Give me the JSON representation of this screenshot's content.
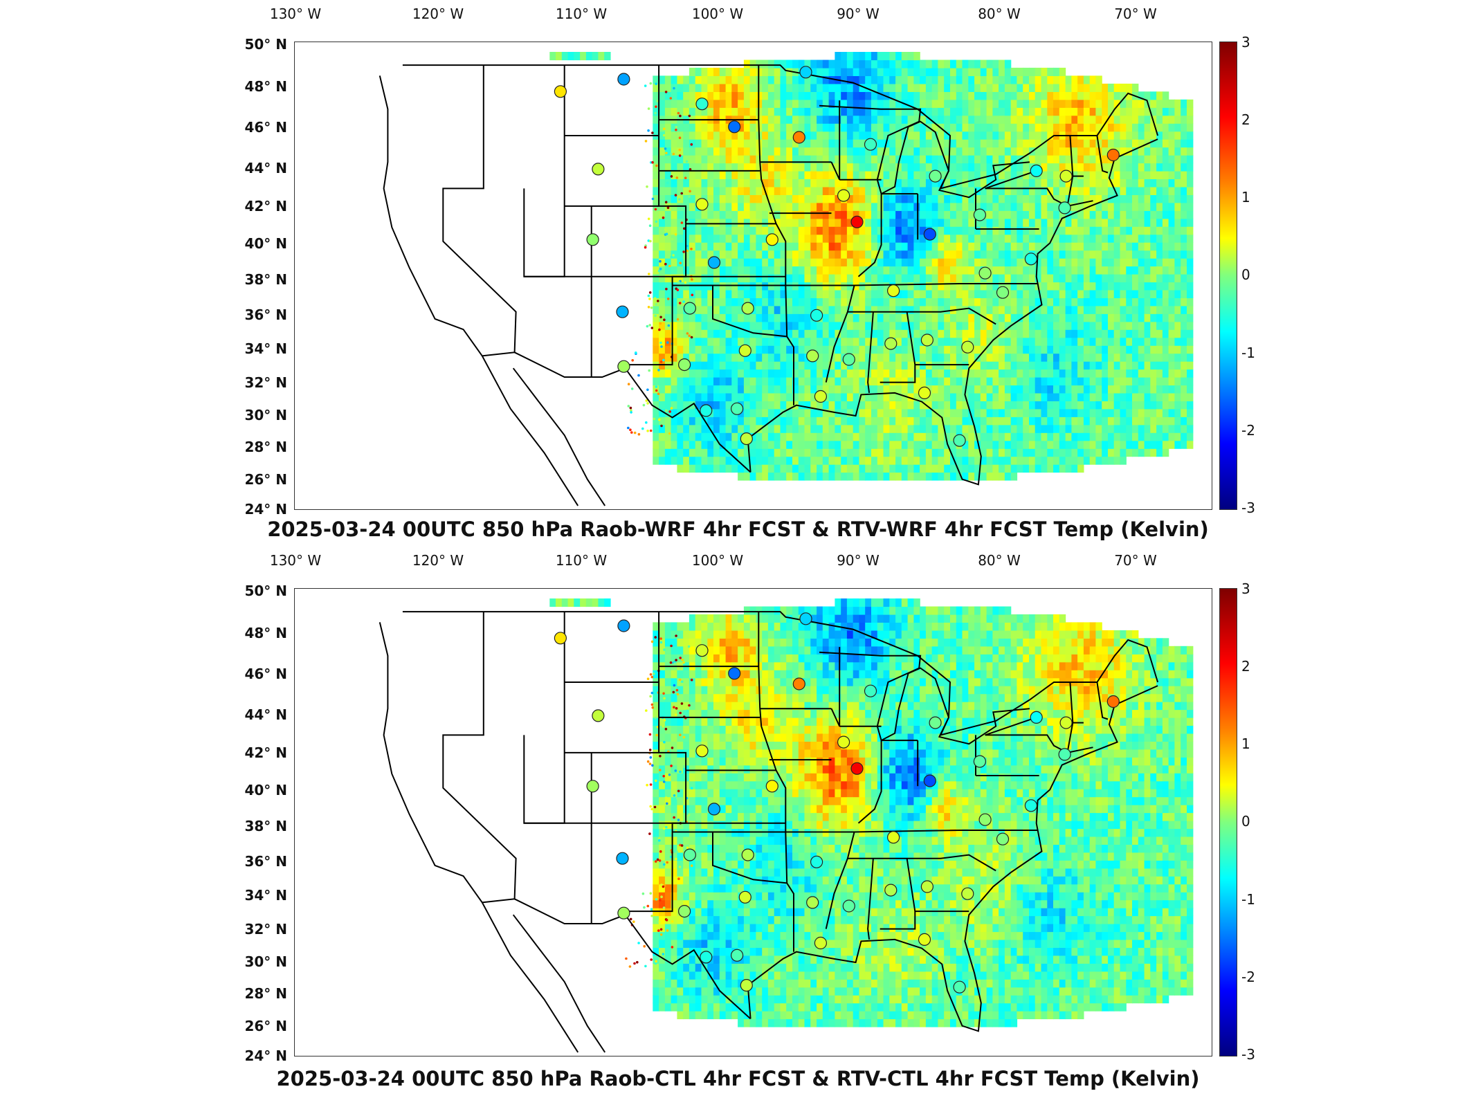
{
  "panels": [
    {
      "id": "top",
      "title": "2025-03-24 00UTC 850 hPa Raob-WRF 4hr FCST & RTV-WRF 4hr FCST Temp (Kelvin)",
      "lon_labels": [
        "130° W",
        "120° W",
        "110° W",
        "100° W",
        "90° W",
        "80° W",
        "70° W"
      ],
      "lat_labels": [
        "50° N",
        "48° N",
        "46° N",
        "44° N",
        "42° N",
        "40° N",
        "38° N",
        "36° N",
        "34° N",
        "32° N",
        "30° N",
        "28° N",
        "26° N",
        "24° N"
      ],
      "colorbar_ticks": [
        "3",
        "2",
        "1",
        "0",
        "-1",
        "-2",
        "-3"
      ],
      "stations": [
        {
          "lon": -111.3,
          "lat": 47.5,
          "value": 0.9
        },
        {
          "lon": -106.6,
          "lat": 48.2,
          "value": -1.3
        },
        {
          "lon": -100.8,
          "lat": 46.8,
          "value": -0.5
        },
        {
          "lon": -98.4,
          "lat": 45.5,
          "value": -1.6
        },
        {
          "lon": -93.6,
          "lat": 44.9,
          "value": 1.5
        },
        {
          "lon": -93.1,
          "lat": 48.6,
          "value": -1.0
        },
        {
          "lon": -108.5,
          "lat": 43.1,
          "value": 0.4
        },
        {
          "lon": -108.9,
          "lat": 39.1,
          "value": 0.1
        },
        {
          "lon": -106.7,
          "lat": 35.0,
          "value": -1.2
        },
        {
          "lon": -106.6,
          "lat": 31.9,
          "value": 0.2
        },
        {
          "lon": -100.8,
          "lat": 41.1,
          "value": 0.6
        },
        {
          "lon": -99.9,
          "lat": 37.8,
          "value": -1.2
        },
        {
          "lon": -95.6,
          "lat": 39.1,
          "value": 0.8
        },
        {
          "lon": -89.3,
          "lat": 40.1,
          "value": 2.3
        },
        {
          "lon": -90.3,
          "lat": 41.6,
          "value": 0.6
        },
        {
          "lon": -101.7,
          "lat": 35.2,
          "value": -0.2
        },
        {
          "lon": -97.4,
          "lat": 35.2,
          "value": 0.3
        },
        {
          "lon": -92.3,
          "lat": 34.8,
          "value": -0.6
        },
        {
          "lon": -86.6,
          "lat": 36.2,
          "value": 0.6
        },
        {
          "lon": -83.9,
          "lat": 39.4,
          "value": -1.8
        },
        {
          "lon": -80.2,
          "lat": 40.5,
          "value": -0.2
        },
        {
          "lon": -79.8,
          "lat": 37.2,
          "value": 0.1
        },
        {
          "lon": -78.5,
          "lat": 36.1,
          "value": 0.0
        },
        {
          "lon": -76.4,
          "lat": 38.0,
          "value": -0.6
        },
        {
          "lon": -73.9,
          "lat": 40.9,
          "value": -0.3
        },
        {
          "lon": -73.8,
          "lat": 42.7,
          "value": 0.5
        },
        {
          "lon": -76.0,
          "lat": 43.0,
          "value": -0.7
        },
        {
          "lon": -70.3,
          "lat": 43.9,
          "value": 1.6
        },
        {
          "lon": -83.5,
          "lat": 42.7,
          "value": -0.1
        },
        {
          "lon": -88.3,
          "lat": 44.5,
          "value": -0.4
        },
        {
          "lon": -81.1,
          "lat": 33.0,
          "value": 0.4
        },
        {
          "lon": -84.1,
          "lat": 33.4,
          "value": 0.4
        },
        {
          "lon": -86.8,
          "lat": 33.2,
          "value": 0.3
        },
        {
          "lon": -89.9,
          "lat": 32.3,
          "value": -0.2
        },
        {
          "lon": -92.6,
          "lat": 32.5,
          "value": 0.3
        },
        {
          "lon": -97.6,
          "lat": 32.8,
          "value": 0.5
        },
        {
          "lon": -102.1,
          "lat": 32.0,
          "value": 0.1
        },
        {
          "lon": -98.2,
          "lat": 29.5,
          "value": -0.3
        },
        {
          "lon": -100.5,
          "lat": 29.4,
          "value": -0.6
        },
        {
          "lon": -92.0,
          "lat": 30.2,
          "value": 0.5
        },
        {
          "lon": -84.3,
          "lat": 30.4,
          "value": 0.6
        },
        {
          "lon": -81.7,
          "lat": 27.7,
          "value": -0.3
        },
        {
          "lon": -97.5,
          "lat": 27.8,
          "value": 0.4
        }
      ]
    },
    {
      "id": "bottom",
      "title": "2025-03-24 00UTC 850 hPa Raob-CTL 4hr FCST & RTV-CTL 4hr FCST Temp (Kelvin)",
      "lon_labels": [
        "130° W",
        "120° W",
        "110° W",
        "100° W",
        "90° W",
        "80° W",
        "70° W"
      ],
      "lat_labels": [
        "50° N",
        "48° N",
        "46° N",
        "44° N",
        "42° N",
        "40° N",
        "38° N",
        "36° N",
        "34° N",
        "32° N",
        "30° N",
        "28° N",
        "26° N",
        "24° N"
      ],
      "colorbar_ticks": [
        "3",
        "2",
        "1",
        "0",
        "-1",
        "-2",
        "-3"
      ],
      "stations": [
        {
          "lon": -111.3,
          "lat": 47.5,
          "value": 0.9
        },
        {
          "lon": -106.6,
          "lat": 48.2,
          "value": -1.3
        },
        {
          "lon": -100.8,
          "lat": 46.8,
          "value": 0.5
        },
        {
          "lon": -98.4,
          "lat": 45.5,
          "value": -1.6
        },
        {
          "lon": -93.6,
          "lat": 44.9,
          "value": 1.5
        },
        {
          "lon": -93.1,
          "lat": 48.6,
          "value": -1.0
        },
        {
          "lon": -108.5,
          "lat": 43.1,
          "value": 0.4
        },
        {
          "lon": -108.9,
          "lat": 39.1,
          "value": 0.2
        },
        {
          "lon": -106.7,
          "lat": 35.0,
          "value": -1.2
        },
        {
          "lon": -106.6,
          "lat": 31.9,
          "value": 0.2
        },
        {
          "lon": -100.8,
          "lat": 41.1,
          "value": 0.6
        },
        {
          "lon": -99.9,
          "lat": 37.8,
          "value": -1.2
        },
        {
          "lon": -95.6,
          "lat": 39.1,
          "value": 0.8
        },
        {
          "lon": -89.3,
          "lat": 40.1,
          "value": 2.3
        },
        {
          "lon": -90.3,
          "lat": 41.6,
          "value": 0.6
        },
        {
          "lon": -101.7,
          "lat": 35.2,
          "value": -0.2
        },
        {
          "lon": -97.4,
          "lat": 35.2,
          "value": 0.3
        },
        {
          "lon": -92.3,
          "lat": 34.8,
          "value": -0.6
        },
        {
          "lon": -86.6,
          "lat": 36.2,
          "value": 0.6
        },
        {
          "lon": -83.9,
          "lat": 39.4,
          "value": -1.8
        },
        {
          "lon": -80.2,
          "lat": 40.5,
          "value": -0.2
        },
        {
          "lon": -79.8,
          "lat": 37.2,
          "value": 0.1
        },
        {
          "lon": -78.5,
          "lat": 36.1,
          "value": 0.0
        },
        {
          "lon": -76.4,
          "lat": 38.0,
          "value": -0.6
        },
        {
          "lon": -73.9,
          "lat": 40.9,
          "value": -0.3
        },
        {
          "lon": -73.8,
          "lat": 42.7,
          "value": 0.5
        },
        {
          "lon": -76.0,
          "lat": 43.0,
          "value": -0.7
        },
        {
          "lon": -70.3,
          "lat": 43.9,
          "value": 1.6
        },
        {
          "lon": -83.5,
          "lat": 42.7,
          "value": -0.1
        },
        {
          "lon": -88.3,
          "lat": 44.5,
          "value": -0.4
        },
        {
          "lon": -81.1,
          "lat": 33.0,
          "value": 0.4
        },
        {
          "lon": -84.1,
          "lat": 33.4,
          "value": 0.4
        },
        {
          "lon": -86.8,
          "lat": 33.2,
          "value": 0.3
        },
        {
          "lon": -89.9,
          "lat": 32.3,
          "value": -0.2
        },
        {
          "lon": -92.6,
          "lat": 32.5,
          "value": 0.3
        },
        {
          "lon": -97.6,
          "lat": 32.8,
          "value": 0.5
        },
        {
          "lon": -102.1,
          "lat": 32.0,
          "value": 0.1
        },
        {
          "lon": -98.2,
          "lat": 29.5,
          "value": -0.3
        },
        {
          "lon": -100.5,
          "lat": 29.4,
          "value": -0.6
        },
        {
          "lon": -92.0,
          "lat": 30.2,
          "value": 0.5
        },
        {
          "lon": -84.3,
          "lat": 30.4,
          "value": 0.6
        },
        {
          "lon": -81.7,
          "lat": 27.7,
          "value": -0.3
        },
        {
          "lon": -97.5,
          "lat": 27.8,
          "value": 0.4
        }
      ]
    }
  ],
  "colorscale": {
    "name": "jet",
    "min": -3,
    "max": 3
  }
}
